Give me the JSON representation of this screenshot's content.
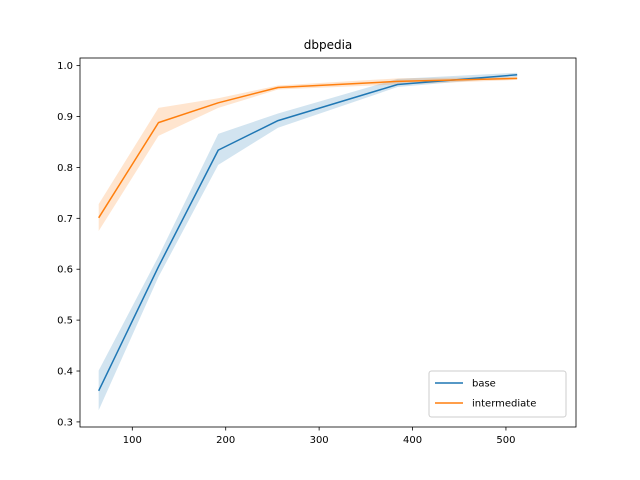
{
  "chart_data": {
    "type": "line",
    "title": "dbpedia",
    "xlabel": "",
    "ylabel": "",
    "xlim": [
      44,
      575
    ],
    "ylim": [
      0.29,
      1.015
    ],
    "xticks": [
      100,
      200,
      300,
      400,
      500
    ],
    "xtick_labels": [
      "100",
      "200",
      "300",
      "400",
      "500"
    ],
    "yticks": [
      0.3,
      0.4,
      0.5,
      0.6,
      0.7,
      0.8,
      0.9,
      1.0
    ],
    "ytick_labels": [
      "0.3",
      "0.4",
      "0.5",
      "0.6",
      "0.7",
      "0.8",
      "0.9",
      "1.0"
    ],
    "grid": false,
    "legend_position": "lower-right",
    "series": [
      {
        "name": "base",
        "color": "#1f77b4",
        "x": [
          64,
          128,
          192,
          256,
          384,
          512
        ],
        "y": [
          0.361,
          0.605,
          0.834,
          0.892,
          0.963,
          0.982
        ],
        "y_lower": [
          0.323,
          0.585,
          0.805,
          0.878,
          0.958,
          0.978
        ],
        "y_upper": [
          0.401,
          0.625,
          0.866,
          0.906,
          0.974,
          0.986
        ]
      },
      {
        "name": "intermediate",
        "color": "#ff7f0e",
        "x": [
          64,
          128,
          192,
          256,
          384,
          512
        ],
        "y": [
          0.701,
          0.888,
          0.927,
          0.957,
          0.969,
          0.975
        ],
        "y_lower": [
          0.675,
          0.862,
          0.917,
          0.953,
          0.963,
          0.972
        ],
        "y_upper": [
          0.728,
          0.917,
          0.936,
          0.961,
          0.975,
          0.978
        ]
      }
    ]
  }
}
